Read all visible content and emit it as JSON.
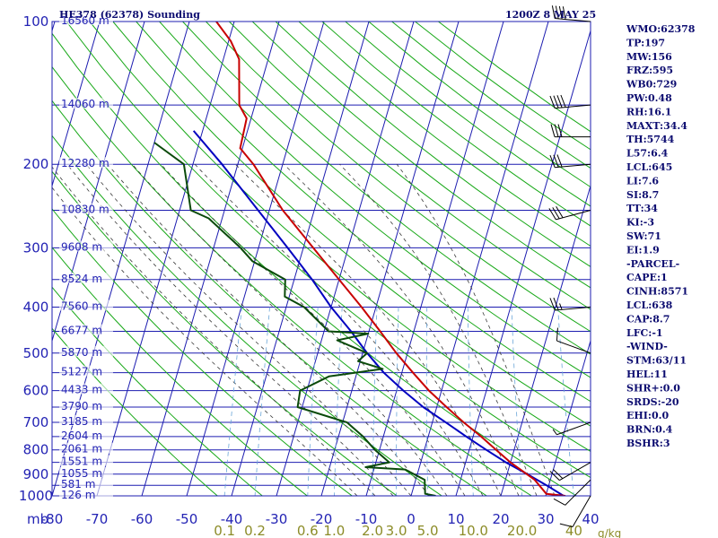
{
  "title": "HE378 (62378) Sounding",
  "timestamp": "1200Z  8 MAY 25",
  "colors": {
    "background": "#ffffff",
    "frame": "#1c1cb0",
    "isotherm": "#1c1cb0",
    "isobar": "#1c1cb0",
    "dry_adiabat": "#18a818",
    "moist_adiabat": "#3a3a3a",
    "mixing_ratio": "#6aa6d8",
    "temperature": "#c80000",
    "dewpoint": "#0a4a0a",
    "parcel": "#0000c0",
    "wind_barb": "#000000",
    "axis_label": "#2323b4",
    "index_text": "#0c0c70",
    "mixing_label": "#8c8c28"
  },
  "indices": [
    "WMO:62378",
    "TP:197",
    "MW:156",
    "FRZ:595",
    "WB0:729",
    "PW:0.48",
    "RH:16.1",
    "MAXT:34.4",
    "TH:5744",
    "L57:6.4",
    "LCL:645",
    "LI:7.6",
    "SI:8.7",
    "TT:34",
    "KI:-3",
    "SW:71",
    "EI:1.9",
    "-PARCEL-",
    "CAPE:1",
    "CINH:8571",
    "LCL:638",
    "CAP:8.7",
    "LFC:-1",
    "-WIND-",
    "STM:63/11",
    "HEL:11",
    "SHR+:0.0",
    "SRDS:-20",
    "EHI:0.0",
    "BRN:0.4",
    "BSHR:3"
  ],
  "chart_data": {
    "type": "skew-t log-p sounding",
    "y_axis_unit": "mb",
    "x_axis_unit": "°C",
    "pressure_levels": [
      {
        "p": 100,
        "label": "100"
      },
      {
        "p": 200,
        "label": "200"
      },
      {
        "p": 300,
        "label": "300"
      },
      {
        "p": 400,
        "label": "400"
      },
      {
        "p": 500,
        "label": "500"
      },
      {
        "p": 600,
        "label": "600"
      },
      {
        "p": 700,
        "label": "700"
      },
      {
        "p": 800,
        "label": "800"
      },
      {
        "p": 900,
        "label": "900"
      },
      {
        "p": 1000,
        "label": "1000"
      }
    ],
    "temperature_ticks": [
      {
        "t": -80,
        "label": "-80"
      },
      {
        "t": -70,
        "label": "-70"
      },
      {
        "t": -60,
        "label": "-60"
      },
      {
        "t": -50,
        "label": "-50"
      },
      {
        "t": -40,
        "label": "-40"
      },
      {
        "t": -30,
        "label": "-30"
      },
      {
        "t": -20,
        "label": "-20"
      },
      {
        "t": -10,
        "label": "-10"
      },
      {
        "t": 0,
        "label": "0"
      },
      {
        "t": 10,
        "label": "10"
      },
      {
        "t": 20,
        "label": "20"
      },
      {
        "t": 30,
        "label": "30"
      },
      {
        "t": 40,
        "label": "40"
      }
    ],
    "heights": [
      {
        "p": 100,
        "label": "16560 m"
      },
      {
        "p": 150,
        "label": "14060 m"
      },
      {
        "p": 200,
        "label": "12280 m"
      },
      {
        "p": 250,
        "label": "10830 m"
      },
      {
        "p": 300,
        "label": "9608 m"
      },
      {
        "p": 350,
        "label": "8524 m"
      },
      {
        "p": 400,
        "label": "7560 m"
      },
      {
        "p": 450,
        "label": "6677 m"
      },
      {
        "p": 500,
        "label": "5870 m"
      },
      {
        "p": 550,
        "label": "5127 m"
      },
      {
        "p": 600,
        "label": "4433 m"
      },
      {
        "p": 650,
        "label": "3790 m"
      },
      {
        "p": 700,
        "label": "3185 m"
      },
      {
        "p": 750,
        "label": "2604 m"
      },
      {
        "p": 800,
        "label": "2061 m"
      },
      {
        "p": 850,
        "label": "1551 m"
      },
      {
        "p": 900,
        "label": "1055 m"
      },
      {
        "p": 950,
        "label": "581 m"
      },
      {
        "p": 1000,
        "label": "126 m"
      }
    ],
    "mixing_ratio_labels": [
      {
        "w": 0.1,
        "label": "0.1"
      },
      {
        "w": 0.2,
        "label": "0.2"
      },
      {
        "w": 0.6,
        "label": "0.6"
      },
      {
        "w": 1.0,
        "label": "1.0"
      },
      {
        "w": 2.0,
        "label": "2.0"
      },
      {
        "w": 3.0,
        "label": "3.0"
      },
      {
        "w": 5.0,
        "label": "5.0"
      },
      {
        "w": 10.0,
        "label": "10.0"
      },
      {
        "w": 20.0,
        "label": "20.0"
      },
      {
        "w": 40.0,
        "label": "40"
      }
    ],
    "mixing_ratio_unit": "g/kg",
    "dry_adiabats_theta_k": [
      230,
      240,
      250,
      260,
      270,
      280,
      290,
      300,
      310,
      320,
      330,
      340,
      350,
      360,
      370,
      380,
      390,
      400,
      410,
      420,
      430,
      440,
      450,
      460,
      470,
      480
    ],
    "moist_adiabats_start_c": [
      -12,
      -8,
      -4,
      0,
      4,
      8,
      12,
      16,
      20,
      24,
      28,
      32
    ],
    "temperature_profile": [
      {
        "p": 1000,
        "t": 34.4
      },
      {
        "p": 990,
        "t": 30.0
      },
      {
        "p": 925,
        "t": 26.5
      },
      {
        "p": 850,
        "t": 20.0
      },
      {
        "p": 800,
        "t": 16.0
      },
      {
        "p": 750,
        "t": 11.8
      },
      {
        "p": 700,
        "t": 7.0
      },
      {
        "p": 650,
        "t": 2.2
      },
      {
        "p": 600,
        "t": -2.8
      },
      {
        "p": 550,
        "t": -7.5
      },
      {
        "p": 500,
        "t": -12.5
      },
      {
        "p": 450,
        "t": -17.5
      },
      {
        "p": 400,
        "t": -23.2
      },
      {
        "p": 350,
        "t": -30.0
      },
      {
        "p": 300,
        "t": -37.8
      },
      {
        "p": 250,
        "t": -47.0
      },
      {
        "p": 200,
        "t": -56.5
      },
      {
        "p": 185,
        "t": -60.5
      },
      {
        "p": 160,
        "t": -61.0
      },
      {
        "p": 150,
        "t": -63.5
      },
      {
        "p": 120,
        "t": -66.5
      },
      {
        "p": 110,
        "t": -69.5
      },
      {
        "p": 100,
        "t": -74.0
      }
    ],
    "dewpoint_profile": [
      {
        "p": 1000,
        "t": 5.5
      },
      {
        "p": 990,
        "t": 3.0
      },
      {
        "p": 925,
        "t": 2.0
      },
      {
        "p": 880,
        "t": -3.0
      },
      {
        "p": 870,
        "t": -12.0
      },
      {
        "p": 850,
        "t": -7.0
      },
      {
        "p": 800,
        "t": -11.0
      },
      {
        "p": 750,
        "t": -14.5
      },
      {
        "p": 700,
        "t": -19.0
      },
      {
        "p": 650,
        "t": -31.0
      },
      {
        "p": 600,
        "t": -31.5
      },
      {
        "p": 560,
        "t": -26.0
      },
      {
        "p": 540,
        "t": -14.5
      },
      {
        "p": 520,
        "t": -20.5
      },
      {
        "p": 500,
        "t": -19.0
      },
      {
        "p": 470,
        "t": -26.5
      },
      {
        "p": 455,
        "t": -20.0
      },
      {
        "p": 450,
        "t": -29.0
      },
      {
        "p": 400,
        "t": -36.0
      },
      {
        "p": 380,
        "t": -41.0
      },
      {
        "p": 350,
        "t": -42.0
      },
      {
        "p": 320,
        "t": -50.5
      },
      {
        "p": 300,
        "t": -54.0
      },
      {
        "p": 260,
        "t": -63.0
      },
      {
        "p": 250,
        "t": -67.5
      },
      {
        "p": 200,
        "t": -72.0
      },
      {
        "p": 180,
        "t": -80.0
      }
    ],
    "parcel_profile": [
      {
        "p": 1000,
        "t": 34.0
      },
      {
        "p": 950,
        "t": 29.5
      },
      {
        "p": 900,
        "t": 24.5
      },
      {
        "p": 850,
        "t": 19.0
      },
      {
        "p": 800,
        "t": 13.8
      },
      {
        "p": 750,
        "t": 8.5
      },
      {
        "p": 700,
        "t": 3.0
      },
      {
        "p": 650,
        "t": -3.0
      },
      {
        "p": 600,
        "t": -8.5
      },
      {
        "p": 550,
        "t": -14.0
      },
      {
        "p": 500,
        "t": -19.0
      },
      {
        "p": 450,
        "t": -24.0
      },
      {
        "p": 400,
        "t": -30.0
      },
      {
        "p": 350,
        "t": -36.0
      },
      {
        "p": 300,
        "t": -43.5
      },
      {
        "p": 250,
        "t": -52.5
      },
      {
        "p": 200,
        "t": -63.5
      },
      {
        "p": 170,
        "t": -72.0
      }
    ],
    "wind_barbs": [
      {
        "p": 1000,
        "dir": 210,
        "speed": 10
      },
      {
        "p": 925,
        "dir": 225,
        "speed": 10
      },
      {
        "p": 850,
        "dir": 240,
        "speed": 20
      },
      {
        "p": 700,
        "dir": 250,
        "speed": 5
      },
      {
        "p": 500,
        "dir": 290,
        "speed": 10
      },
      {
        "p": 400,
        "dir": 265,
        "speed": 25
      },
      {
        "p": 250,
        "dir": 255,
        "speed": 30
      },
      {
        "p": 200,
        "dir": 265,
        "speed": 30
      },
      {
        "p": 175,
        "dir": 270,
        "speed": 30
      },
      {
        "p": 150,
        "dir": 265,
        "speed": 40
      },
      {
        "p": 100,
        "dir": 275,
        "speed": 40
      }
    ]
  }
}
